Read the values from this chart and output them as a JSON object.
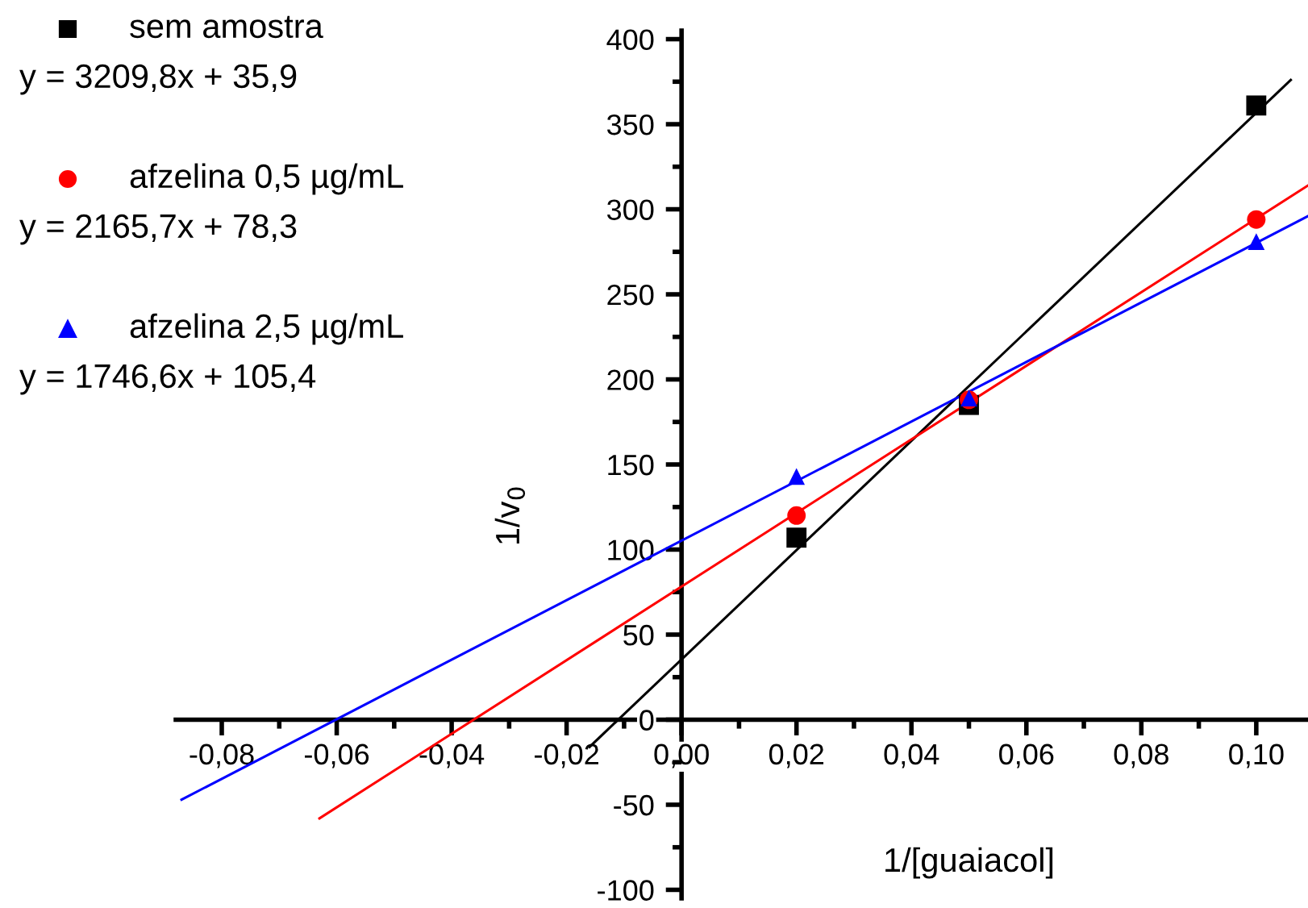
{
  "chart_data": {
    "type": "scatter",
    "xlabel": "1/[guaiacol]",
    "ylabel": "1/v$_{0}$",
    "series": [
      {
        "name": "sem amostra",
        "color": "#000000",
        "marker": "square",
        "x": [
          0.02,
          0.05,
          0.1
        ],
        "values": [
          107,
          185,
          361
        ]
      },
      {
        "name": "afzelina 0,5 µg/mL",
        "color": "#ff0000",
        "marker": "circle",
        "x": [
          0.02,
          0.05,
          0.1
        ],
        "values": [
          120,
          188,
          294
        ]
      },
      {
        "name": "afzelina 2,5 µg/mL",
        "color": "#0000ff",
        "marker": "triangle",
        "x": [
          0.02,
          0.05,
          0.1
        ],
        "values": [
          143,
          189,
          281
        ]
      },
      {
        "type": "line",
        "color": "#000000",
        "marker": "none",
        "x": [
          -0.016,
          0.106
        ],
        "values": [
          -16,
          376
        ]
      },
      {
        "type": "line",
        "color": "#ff0000",
        "marker": "none",
        "x": [
          -0.063,
          0.109
        ],
        "values": [
          -58,
          314
        ]
      },
      {
        "type": "line",
        "color": "#0000ff",
        "marker": "none",
        "x": [
          -0.087,
          0.109
        ],
        "values": [
          -47,
          296
        ]
      }
    ],
    "annotations": [
      "y = 3209,8x + 35,9",
      "y = 2165,7x + 78,3",
      "y = 1746,6x + 105,4"
    ],
    "legend": "top left",
    "grid": false,
    "xlim": [
      -0.088,
      0.109
    ],
    "ylim": [
      -105,
      405
    ],
    "xticks": [
      {
        "value": -0.08,
        "label": "-0,08"
      },
      {
        "value": -0.07,
        "label": null
      },
      {
        "value": -0.06,
        "label": "-0,06"
      },
      {
        "value": -0.05,
        "label": null
      },
      {
        "value": -0.04,
        "label": "-0,04"
      },
      {
        "value": -0.03,
        "label": null
      },
      {
        "value": -0.02,
        "label": "-0,02"
      },
      {
        "value": -0.01,
        "label": null
      },
      {
        "value": 0,
        "label": "0,00"
      },
      {
        "value": 0.01,
        "label": null
      },
      {
        "value": 0.02,
        "label": "0,02"
      },
      {
        "value": 0.03,
        "label": null
      },
      {
        "value": 0.04,
        "label": "0,04"
      },
      {
        "value": 0.05,
        "label": null
      },
      {
        "value": 0.06,
        "label": "0,06"
      },
      {
        "value": 0.07,
        "label": null
      },
      {
        "value": 0.08,
        "label": "0,08"
      },
      {
        "value": 0.09,
        "label": null
      },
      {
        "value": 0.1,
        "label": "0,10"
      }
    ],
    "yticks": [
      -100,
      {
        "value": -75,
        "label": null
      },
      -50,
      {
        "value": -25,
        "label": null
      },
      0,
      {
        "value": 25,
        "label": null
      },
      50,
      {
        "value": 75,
        "label": null
      },
      100,
      {
        "value": 125,
        "label": null
      },
      150,
      {
        "value": 175,
        "label": null
      },
      200,
      {
        "value": 225,
        "label": null
      },
      250,
      {
        "value": 275,
        "label": null
      },
      300,
      {
        "value": 325,
        "label": null
      },
      350,
      {
        "value": 375,
        "label": null
      },
      400
    ]
  }
}
